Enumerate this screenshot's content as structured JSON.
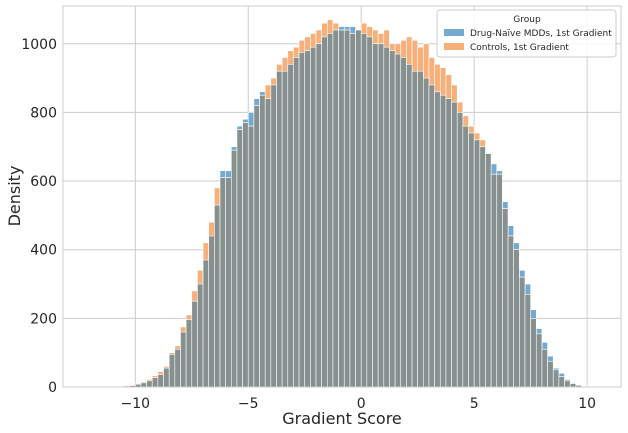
{
  "chart_data": {
    "type": "bar",
    "title": "",
    "xlabel": "Gradient Score",
    "ylabel": "Density",
    "xlim": [
      -13.2,
      11.5
    ],
    "ylim": [
      0,
      1110
    ],
    "xticks": [
      -10,
      -5,
      0,
      5,
      10
    ],
    "yticks": [
      0,
      200,
      400,
      600,
      800,
      1000
    ],
    "xtick_labels": [
      "−10",
      "−5",
      "0",
      "5",
      "10"
    ],
    "ytick_labels": [
      "0",
      "200",
      "400",
      "600",
      "800",
      "1000"
    ],
    "grid": true,
    "legend_placement": "top-right",
    "legend_title": "Group",
    "bin_width": 0.25,
    "x": [
      -11.875,
      -11.625,
      -11.375,
      -11.125,
      -10.875,
      -10.625,
      -10.375,
      -10.125,
      -9.875,
      -9.625,
      -9.375,
      -9.125,
      -8.875,
      -8.625,
      -8.375,
      -8.125,
      -7.875,
      -7.625,
      -7.375,
      -7.125,
      -6.875,
      -6.625,
      -6.375,
      -6.125,
      -5.875,
      -5.625,
      -5.375,
      -5.125,
      -4.875,
      -4.625,
      -4.375,
      -4.125,
      -3.875,
      -3.625,
      -3.375,
      -3.125,
      -2.875,
      -2.625,
      -2.375,
      -2.125,
      -1.875,
      -1.625,
      -1.375,
      -1.125,
      -0.875,
      -0.625,
      -0.375,
      -0.125,
      0.125,
      0.375,
      0.625,
      0.875,
      1.125,
      1.375,
      1.625,
      1.875,
      2.125,
      2.375,
      2.625,
      2.875,
      3.125,
      3.375,
      3.625,
      3.875,
      4.125,
      4.375,
      4.625,
      4.875,
      5.125,
      5.375,
      5.625,
      5.875,
      6.125,
      6.375,
      6.625,
      6.875,
      7.125,
      7.375,
      7.625,
      7.875,
      8.125,
      8.375,
      8.625,
      8.875,
      9.125,
      9.375,
      9.625,
      9.875,
      10.125,
      10.375
    ],
    "series": [
      {
        "name": "Drug-Naïve MDDs, 1st Gradient",
        "color": "#74aad1",
        "values": [
          0,
          0,
          1,
          1,
          2,
          2,
          3,
          4,
          8,
          12,
          18,
          27,
          36,
          55,
          95,
          110,
          160,
          196,
          250,
          300,
          370,
          440,
          530,
          630,
          630,
          700,
          760,
          780,
          800,
          840,
          860,
          840,
          880,
          920,
          920,
          940,
          960,
          975,
          980,
          990,
          1000,
          1020,
          1030,
          1040,
          1050,
          1050,
          1050,
          1040,
          1030,
          1020,
          1000,
          1000,
          990,
          980,
          970,
          960,
          940,
          920,
          920,
          900,
          880,
          860,
          850,
          840,
          830,
          800,
          760,
          740,
          720,
          700,
          680,
          650,
          630,
          540,
          470,
          420,
          340,
          300,
          225,
          170,
          130,
          90,
          55,
          40,
          22,
          12,
          6,
          3,
          1,
          1
        ]
      },
      {
        "name": "Controls, 1st Gradient",
        "color": "#f7b07a",
        "values": [
          0,
          0,
          1,
          1,
          2,
          3,
          4,
          6,
          10,
          15,
          22,
          33,
          45,
          60,
          100,
          120,
          175,
          210,
          280,
          340,
          420,
          480,
          580,
          610,
          610,
          690,
          750,
          770,
          760,
          820,
          850,
          880,
          900,
          940,
          960,
          980,
          990,
          1010,
          1020,
          1030,
          1040,
          1060,
          1070,
          1060,
          1040,
          1040,
          1030,
          1040,
          1060,
          1050,
          1040,
          1030,
          1040,
          1000,
          1000,
          1010,
          1020,
          1010,
          990,
          1000,
          960,
          940,
          930,
          910,
          880,
          830,
          790,
          760,
          740,
          720,
          680,
          620,
          620,
          520,
          440,
          400,
          320,
          270,
          200,
          155,
          110,
          75,
          50,
          30,
          18,
          10,
          5,
          2,
          1,
          0
        ]
      }
    ]
  }
}
